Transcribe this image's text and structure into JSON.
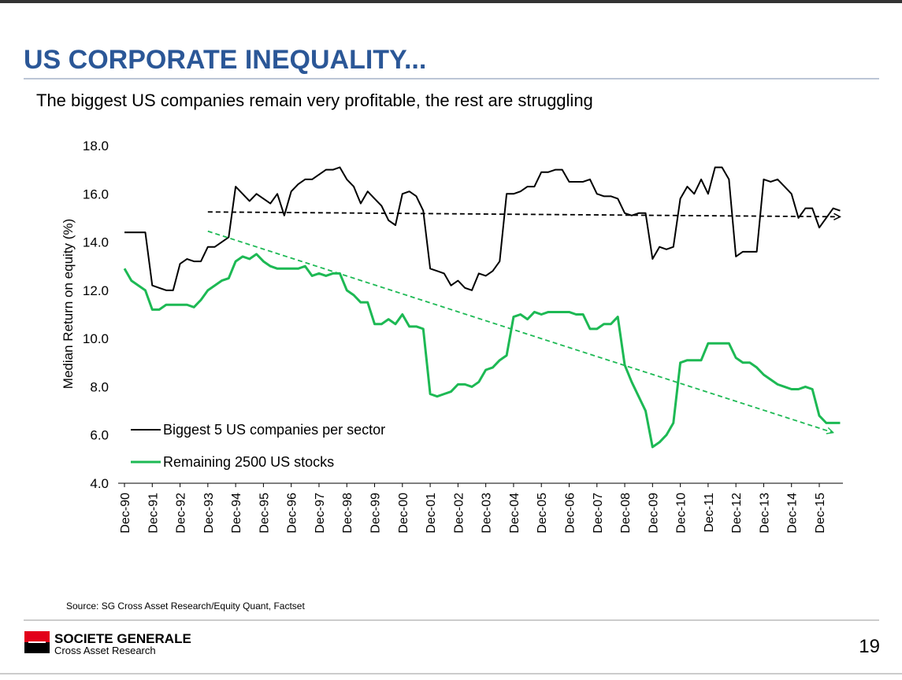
{
  "slide": {
    "title": "US CORPORATE INEQUALITY...",
    "source": "Source: SG Cross Asset Research/Equity Quant, Factset",
    "brand": "SOCIETE GENERALE",
    "brand_sub": "Cross Asset Research",
    "page_number": "19"
  },
  "chart_data": {
    "type": "line",
    "title": "The biggest US companies remain very profitable, the rest are struggling",
    "y_label": "Median  Return on equity  (%)",
    "ylim": [
      4,
      18
    ],
    "yticks": [
      {
        "value": 4,
        "label": "4.0"
      },
      {
        "value": 6,
        "label": "6.0"
      },
      {
        "value": 8,
        "label": "8.0"
      },
      {
        "value": 10,
        "label": "10.0"
      },
      {
        "value": 12,
        "label": "12.0"
      },
      {
        "value": 14,
        "label": "14.0"
      },
      {
        "value": 16,
        "label": "16.0"
      },
      {
        "value": 18,
        "label": "18.0"
      }
    ],
    "grid": false,
    "legend": "lower-left",
    "categories": [
      "Dec-90",
      null,
      null,
      null,
      "Dec-91",
      null,
      null,
      null,
      "Dec-92",
      null,
      null,
      null,
      "Dec-93",
      null,
      null,
      null,
      "Dec-94",
      null,
      null,
      null,
      "Dec-95",
      null,
      null,
      null,
      "Dec-96",
      null,
      null,
      null,
      "Dec-97",
      null,
      null,
      null,
      "Dec-98",
      null,
      null,
      null,
      "Dec-99",
      null,
      null,
      null,
      "Dec-00",
      null,
      null,
      null,
      "Dec-01",
      null,
      null,
      null,
      "Dec-02",
      null,
      null,
      null,
      "Dec-03",
      null,
      null,
      null,
      "Dec-04",
      null,
      null,
      null,
      "Dec-05",
      null,
      null,
      null,
      "Dec-06",
      null,
      null,
      null,
      "Dec-07",
      null,
      null,
      null,
      "Dec-08",
      null,
      null,
      null,
      "Dec-09",
      null,
      null,
      null,
      "Dec-10",
      null,
      null,
      null,
      "Dec-11",
      null,
      null,
      null,
      "Dec-12",
      null,
      null,
      null,
      "Dec-13",
      null,
      null,
      null,
      "Dec-14",
      null,
      null,
      null,
      "Dec-15",
      null,
      null,
      null
    ],
    "series": [
      {
        "name": "Biggest 5 US companies per sector",
        "color": "#000000",
        "values": [
          14.4,
          14.4,
          14.4,
          14.4,
          12.2,
          12.1,
          12.0,
          12.0,
          13.1,
          13.3,
          13.2,
          13.2,
          13.8,
          13.8,
          14.0,
          14.2,
          16.3,
          16.0,
          15.7,
          16.0,
          15.8,
          15.6,
          16.0,
          15.1,
          16.1,
          16.4,
          16.6,
          16.6,
          16.8,
          17.0,
          17.0,
          17.1,
          16.6,
          16.3,
          15.6,
          16.1,
          15.8,
          15.5,
          14.9,
          14.7,
          16.0,
          16.1,
          15.9,
          15.3,
          12.9,
          12.8,
          12.7,
          12.2,
          12.4,
          12.1,
          12.0,
          12.7,
          12.6,
          12.8,
          13.2,
          16.0,
          16.0,
          16.1,
          16.3,
          16.3,
          16.9,
          16.9,
          17.0,
          17.0,
          16.5,
          16.5,
          16.5,
          16.6,
          16.0,
          15.9,
          15.9,
          15.8,
          15.2,
          15.1,
          15.2,
          15.2,
          13.3,
          13.8,
          13.7,
          13.8,
          15.8,
          16.3,
          16.0,
          16.6,
          16.0,
          17.1,
          17.1,
          16.6,
          13.4,
          13.6,
          13.6,
          13.6,
          16.6,
          16.5,
          16.6,
          16.3,
          16.0,
          15.0,
          15.4,
          15.4,
          14.6,
          15.0,
          15.4,
          15.3
        ]
      },
      {
        "name": "Remaining 2500 US stocks",
        "color": "#1db954",
        "values": [
          12.9,
          12.4,
          12.2,
          12.0,
          11.2,
          11.2,
          11.4,
          11.4,
          11.4,
          11.4,
          11.3,
          11.6,
          12.0,
          12.2,
          12.4,
          12.5,
          13.2,
          13.4,
          13.3,
          13.5,
          13.2,
          13.0,
          12.9,
          12.9,
          12.9,
          12.9,
          13.0,
          12.6,
          12.7,
          12.6,
          12.7,
          12.7,
          12.0,
          11.8,
          11.5,
          11.5,
          10.6,
          10.6,
          10.8,
          10.6,
          11.0,
          10.5,
          10.5,
          10.4,
          7.7,
          7.6,
          7.7,
          7.8,
          8.1,
          8.1,
          8.0,
          8.2,
          8.7,
          8.8,
          9.1,
          9.3,
          10.9,
          11.0,
          10.8,
          11.1,
          11.0,
          11.1,
          11.1,
          11.1,
          11.1,
          11.0,
          11.0,
          10.4,
          10.4,
          10.6,
          10.6,
          10.9,
          8.9,
          8.2,
          7.6,
          7.0,
          5.5,
          5.7,
          6.0,
          6.5,
          9.0,
          9.1,
          9.1,
          9.1,
          9.8,
          9.8,
          9.8,
          9.8,
          9.2,
          9.0,
          9.0,
          8.8,
          8.5,
          8.3,
          8.1,
          8.0,
          7.9,
          7.9,
          8.0,
          7.9,
          6.8,
          6.5,
          6.5,
          6.5
        ]
      }
    ],
    "trend_lines": [
      {
        "color": "#000000",
        "style": "dashed",
        "start": {
          "x": 12,
          "value": 15.25
        },
        "end": {
          "x": 103,
          "value": 15.05
        }
      },
      {
        "color": "#1db954",
        "style": "dashed",
        "start": {
          "x": 12,
          "value": 14.45
        },
        "end": {
          "x": 102,
          "value": 6.1
        }
      }
    ]
  }
}
